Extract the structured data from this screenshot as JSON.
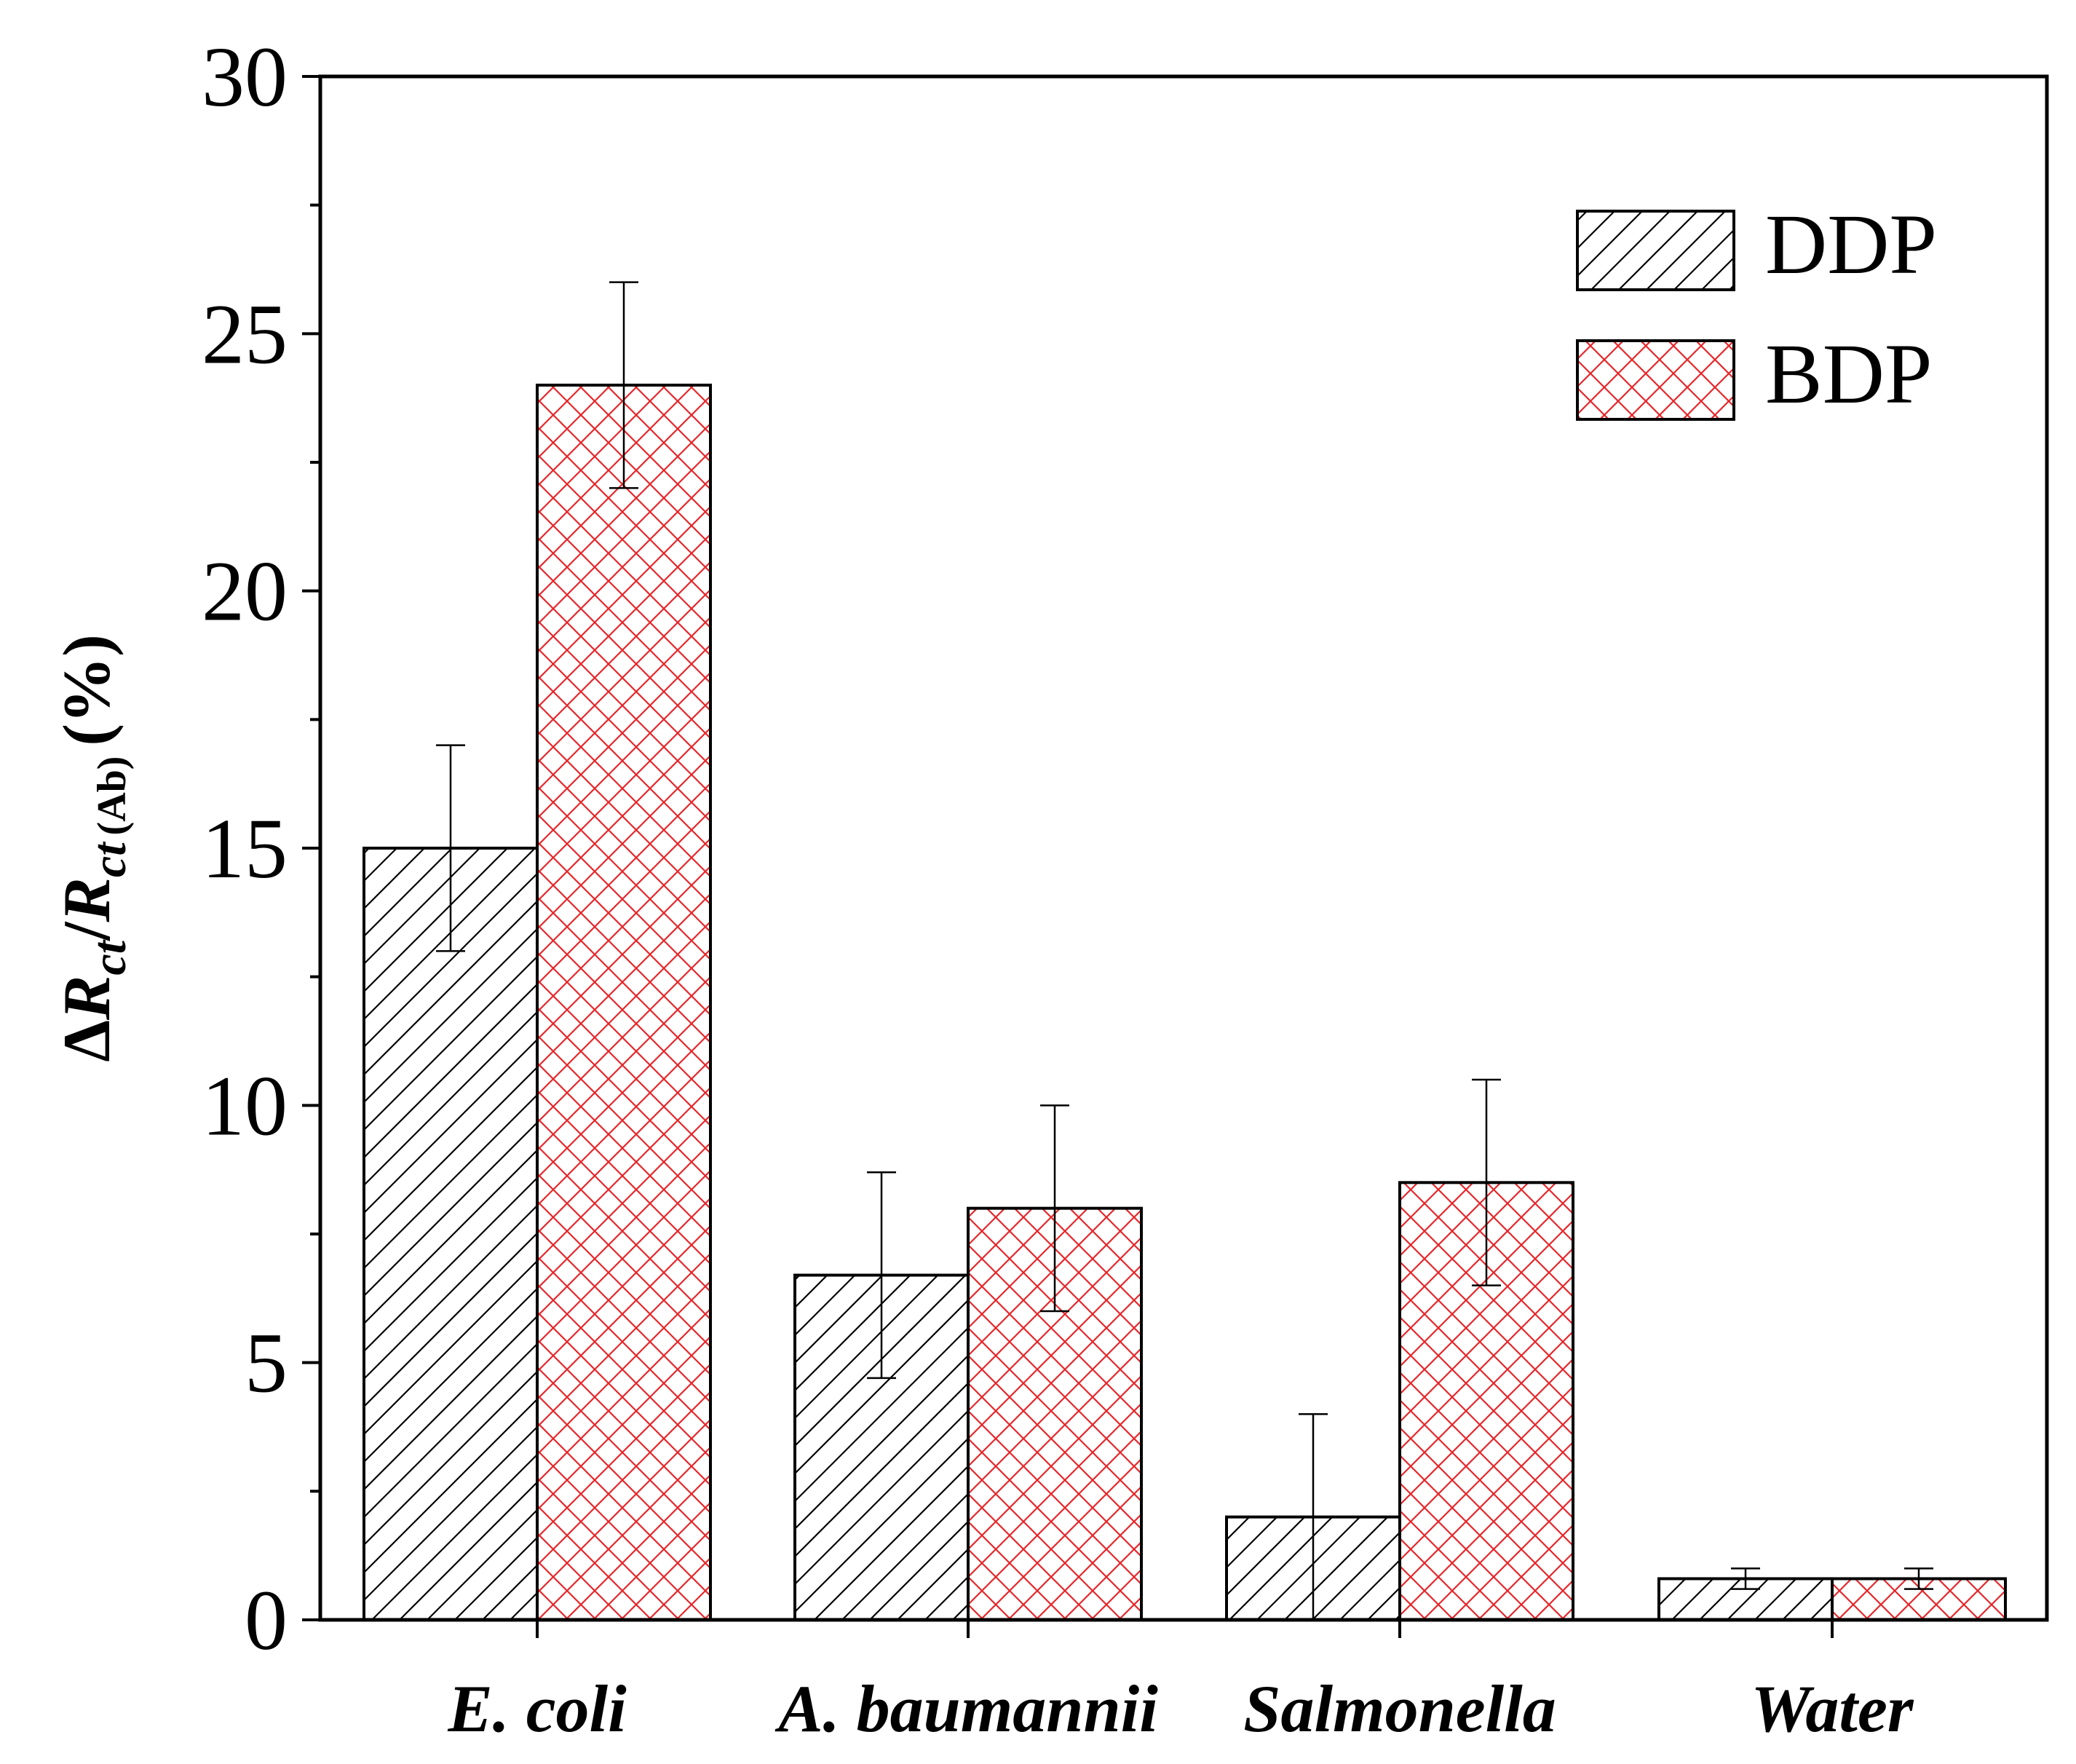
{
  "chart_data": {
    "type": "bar",
    "categories": [
      "E. coli",
      "A. baumannii",
      "Salmonella",
      "Water"
    ],
    "series": [
      {
        "name": "DDP",
        "values": [
          15,
          6.7,
          2,
          0.8
        ],
        "errors": [
          2,
          2,
          2,
          0.2
        ],
        "color": "#000000",
        "pattern": "diagonal-hatch"
      },
      {
        "name": "BDP",
        "values": [
          24,
          8,
          8.5,
          0.8
        ],
        "errors": [
          2,
          2,
          2,
          0.2
        ],
        "color": "#e8262a",
        "pattern": "cross-hatch"
      }
    ],
    "ylabel_parts": {
      "delta": "Δ",
      "r1": "R",
      "sub1": "ct",
      "slash": "/",
      "r2": "R",
      "sub2": "ct",
      "sub3": "(Ab)",
      "unit": "(%)"
    },
    "xlabel": "",
    "title": "",
    "ylim": [
      0,
      30
    ],
    "yticks": [
      "0",
      "5",
      "10",
      "15",
      "20",
      "25",
      "30"
    ],
    "ytick_values": [
      0,
      5,
      10,
      15,
      20,
      25,
      30
    ],
    "yminor_step": 2.5,
    "legend_position": "top-right",
    "grid": false
  }
}
